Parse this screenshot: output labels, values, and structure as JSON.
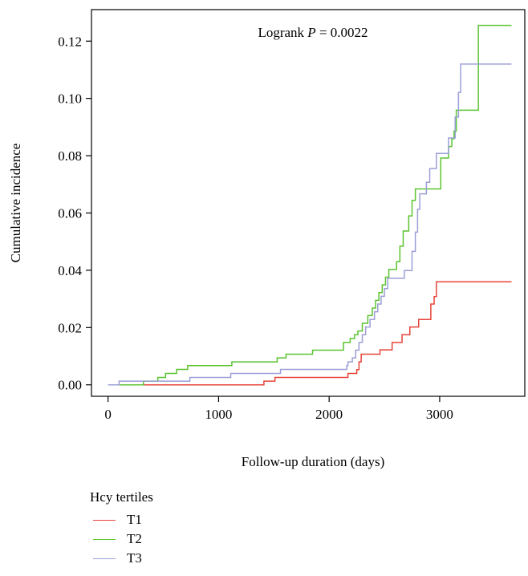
{
  "chart_data": {
    "type": "line",
    "step": true,
    "xlabel": "Follow-up duration (days)",
    "ylabel": "Cumulative incidence",
    "xlim": [
      -150,
      3770
    ],
    "ylim": [
      -0.004,
      0.131
    ],
    "x_ticks": [
      0,
      1000,
      2000,
      3000
    ],
    "y_ticks": [
      0.0,
      0.02,
      0.04,
      0.06,
      0.08,
      0.1,
      0.12
    ],
    "y_tick_labels": [
      "0.00",
      "0.02",
      "0.04",
      "0.06",
      "0.08",
      "0.10",
      "0.12"
    ],
    "x_tick_labels": [
      "0",
      "1000",
      "2000",
      "3000"
    ],
    "annotation": {
      "prefix": "Logrank ",
      "italic": "P",
      "suffix": " = 0.0022"
    },
    "legend": {
      "title": "Hcy tertiles",
      "placement": "bottom-left"
    },
    "series": [
      {
        "name": "T1",
        "color": "#e8433a",
        "points": [
          [
            0,
            0
          ],
          [
            1400,
            0
          ],
          [
            1410,
            0.0013
          ],
          [
            1500,
            0.0013
          ],
          [
            1510,
            0.0026
          ],
          [
            2150,
            0.0026
          ],
          [
            2170,
            0.004
          ],
          [
            2240,
            0.004
          ],
          [
            2250,
            0.0053
          ],
          [
            2260,
            0.0053
          ],
          [
            2270,
            0.008
          ],
          [
            2280,
            0.008
          ],
          [
            2290,
            0.0107
          ],
          [
            2450,
            0.0107
          ],
          [
            2460,
            0.0122
          ],
          [
            2560,
            0.0122
          ],
          [
            2570,
            0.0148
          ],
          [
            2650,
            0.0148
          ],
          [
            2660,
            0.0175
          ],
          [
            2720,
            0.0175
          ],
          [
            2730,
            0.0202
          ],
          [
            2800,
            0.0202
          ],
          [
            2810,
            0.0228
          ],
          [
            2910,
            0.0228
          ],
          [
            2920,
            0.0282
          ],
          [
            2940,
            0.0282
          ],
          [
            2950,
            0.0308
          ],
          [
            2960,
            0.0308
          ],
          [
            2970,
            0.036
          ],
          [
            3650,
            0.036
          ]
        ]
      },
      {
        "name": "T2",
        "color": "#5bc430",
        "points": [
          [
            0,
            0
          ],
          [
            310,
            0
          ],
          [
            320,
            0.0013
          ],
          [
            440,
            0.0013
          ],
          [
            450,
            0.0026
          ],
          [
            510,
            0.0026
          ],
          [
            520,
            0.004
          ],
          [
            610,
            0.004
          ],
          [
            620,
            0.0054
          ],
          [
            710,
            0.0054
          ],
          [
            720,
            0.0067
          ],
          [
            1110,
            0.0067
          ],
          [
            1120,
            0.008
          ],
          [
            1520,
            0.008
          ],
          [
            1530,
            0.0094
          ],
          [
            1600,
            0.0094
          ],
          [
            1610,
            0.0107
          ],
          [
            1840,
            0.0107
          ],
          [
            1850,
            0.0121
          ],
          [
            2120,
            0.0121
          ],
          [
            2130,
            0.0148
          ],
          [
            2180,
            0.0148
          ],
          [
            2190,
            0.0162
          ],
          [
            2220,
            0.0162
          ],
          [
            2230,
            0.0175
          ],
          [
            2250,
            0.0175
          ],
          [
            2260,
            0.0188
          ],
          [
            2290,
            0.0188
          ],
          [
            2300,
            0.0215
          ],
          [
            2340,
            0.0215
          ],
          [
            2350,
            0.0242
          ],
          [
            2380,
            0.0242
          ],
          [
            2390,
            0.0268
          ],
          [
            2410,
            0.0268
          ],
          [
            2420,
            0.0295
          ],
          [
            2440,
            0.0295
          ],
          [
            2450,
            0.0322
          ],
          [
            2470,
            0.0322
          ],
          [
            2480,
            0.0349
          ],
          [
            2500,
            0.0349
          ],
          [
            2510,
            0.0376
          ],
          [
            2530,
            0.0376
          ],
          [
            2540,
            0.0403
          ],
          [
            2600,
            0.0403
          ],
          [
            2610,
            0.043
          ],
          [
            2630,
            0.043
          ],
          [
            2640,
            0.0484
          ],
          [
            2660,
            0.0484
          ],
          [
            2670,
            0.0537
          ],
          [
            2710,
            0.0537
          ],
          [
            2720,
            0.059
          ],
          [
            2740,
            0.059
          ],
          [
            2750,
            0.0644
          ],
          [
            2770,
            0.0644
          ],
          [
            2780,
            0.0684
          ],
          [
            3000,
            0.0684
          ],
          [
            3010,
            0.0792
          ],
          [
            3070,
            0.0792
          ],
          [
            3080,
            0.0832
          ],
          [
            3100,
            0.0832
          ],
          [
            3110,
            0.0859
          ],
          [
            3120,
            0.0859
          ],
          [
            3130,
            0.0886
          ],
          [
            3140,
            0.0886
          ],
          [
            3150,
            0.0959
          ],
          [
            3340,
            0.0959
          ],
          [
            3350,
            0.1255
          ],
          [
            3650,
            0.1255
          ]
        ]
      },
      {
        "name": "T3",
        "color": "#9b9fd6",
        "points": [
          [
            0,
            0
          ],
          [
            90,
            0
          ],
          [
            100,
            0.0013
          ],
          [
            730,
            0.0013
          ],
          [
            740,
            0.0026
          ],
          [
            1100,
            0.0026
          ],
          [
            1110,
            0.004
          ],
          [
            1550,
            0.004
          ],
          [
            1560,
            0.0054
          ],
          [
            1850,
            0.0054
          ],
          [
            1860,
            0.0054
          ],
          [
            2150,
            0.0054
          ],
          [
            2160,
            0.0067
          ],
          [
            2170,
            0.008
          ],
          [
            2200,
            0.008
          ],
          [
            2210,
            0.0094
          ],
          [
            2230,
            0.0094
          ],
          [
            2240,
            0.0121
          ],
          [
            2260,
            0.0121
          ],
          [
            2270,
            0.0148
          ],
          [
            2290,
            0.0148
          ],
          [
            2300,
            0.0175
          ],
          [
            2320,
            0.0175
          ],
          [
            2330,
            0.0202
          ],
          [
            2360,
            0.0202
          ],
          [
            2370,
            0.0228
          ],
          [
            2400,
            0.0228
          ],
          [
            2410,
            0.0255
          ],
          [
            2430,
            0.0255
          ],
          [
            2440,
            0.0282
          ],
          [
            2460,
            0.0282
          ],
          [
            2470,
            0.0309
          ],
          [
            2490,
            0.0309
          ],
          [
            2500,
            0.0336
          ],
          [
            2520,
            0.0336
          ],
          [
            2530,
            0.0372
          ],
          [
            2670,
            0.0372
          ],
          [
            2680,
            0.0399
          ],
          [
            2740,
            0.0399
          ],
          [
            2750,
            0.0466
          ],
          [
            2770,
            0.0466
          ],
          [
            2780,
            0.0533
          ],
          [
            2790,
            0.0533
          ],
          [
            2800,
            0.0613
          ],
          [
            2810,
            0.0613
          ],
          [
            2820,
            0.0667
          ],
          [
            2870,
            0.0667
          ],
          [
            2880,
            0.0707
          ],
          [
            2900,
            0.0707
          ],
          [
            2910,
            0.0755
          ],
          [
            2960,
            0.0755
          ],
          [
            2970,
            0.0808
          ],
          [
            3070,
            0.0808
          ],
          [
            3080,
            0.0862
          ],
          [
            3130,
            0.0862
          ],
          [
            3140,
            0.0935
          ],
          [
            3160,
            0.0935
          ],
          [
            3170,
            0.1021
          ],
          [
            3180,
            0.1021
          ],
          [
            3190,
            0.112
          ],
          [
            3650,
            0.112
          ]
        ]
      }
    ]
  }
}
